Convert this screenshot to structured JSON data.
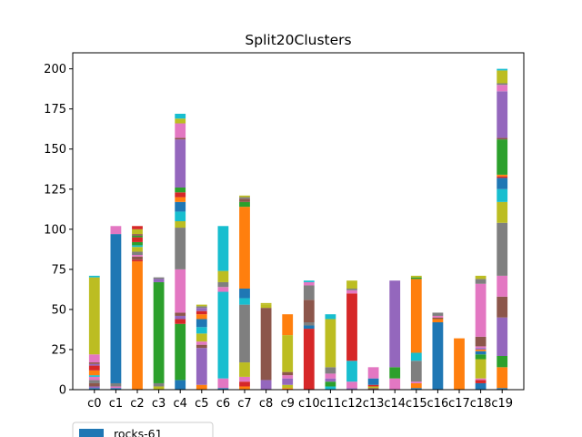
{
  "chart_data": {
    "type": "bar",
    "stacked": true,
    "title": "Split20Clusters",
    "xlabel": "",
    "ylabel": "",
    "ylim": [
      0,
      210
    ],
    "yticks": [
      0,
      25,
      50,
      75,
      100,
      125,
      150,
      175,
      200
    ],
    "grid": false,
    "legend_placement": "bottom-left (partially visible)",
    "categories": [
      "c0",
      "c1",
      "c2",
      "c3",
      "c4",
      "c5",
      "c6",
      "c7",
      "c8",
      "c9",
      "c10",
      "c11",
      "c12",
      "c13",
      "c14",
      "c15",
      "c16",
      "c17",
      "c18",
      "c19"
    ],
    "segment_colors": [
      "#1f77b4",
      "#ff7f0e",
      "#2ca02c",
      "#d62728",
      "#9467bd",
      "#8c564b",
      "#e377c2",
      "#7f7f7f",
      "#bcbd22",
      "#17becf"
    ],
    "stacks": [
      [
        [
          1,
          "#1f77b4"
        ],
        [
          1,
          "#9467bd"
        ],
        [
          2,
          "#8c564b"
        ],
        [
          2,
          "#7f7f7f"
        ],
        [
          2,
          "#e377c2"
        ],
        [
          1,
          "#17becf"
        ],
        [
          3,
          "#ff7f0e"
        ],
        [
          3,
          "#d62728"
        ],
        [
          1,
          "#9467bd"
        ],
        [
          1,
          "#8c564b"
        ],
        [
          5,
          "#e377c2"
        ],
        [
          48,
          "#bcbd22"
        ],
        [
          1,
          "#17becf"
        ]
      ],
      [
        [
          1,
          "#1f77b4"
        ],
        [
          1,
          "#e377c2"
        ],
        [
          2,
          "#7f7f7f"
        ],
        [
          93,
          "#1f77b4"
        ],
        [
          5,
          "#e377c2"
        ]
      ],
      [
        [
          80,
          "#ff7f0e"
        ],
        [
          1,
          "#d62728"
        ],
        [
          2,
          "#8c564b"
        ],
        [
          1,
          "#e377c2"
        ],
        [
          2,
          "#7f7f7f"
        ],
        [
          3,
          "#bcbd22"
        ],
        [
          1,
          "#17becf"
        ],
        [
          2,
          "#2ca02c"
        ],
        [
          3,
          "#d62728"
        ],
        [
          1,
          "#2ca02c"
        ],
        [
          1,
          "#8c564b"
        ],
        [
          3,
          "#bcbd22"
        ],
        [
          2,
          "#d62728"
        ]
      ],
      [
        [
          2,
          "#bcbd22"
        ],
        [
          2,
          "#7f7f7f"
        ],
        [
          63,
          "#2ca02c"
        ],
        [
          2,
          "#9467bd"
        ],
        [
          1,
          "#7f7f7f"
        ]
      ],
      [
        [
          6,
          "#1f77b4"
        ],
        [
          35,
          "#2ca02c"
        ],
        [
          3,
          "#d62728"
        ],
        [
          2,
          "#9467bd"
        ],
        [
          2,
          "#8c564b"
        ],
        [
          27,
          "#e377c2"
        ],
        [
          26,
          "#7f7f7f"
        ],
        [
          4,
          "#bcbd22"
        ],
        [
          6,
          "#17becf"
        ],
        [
          6,
          "#1f77b4"
        ],
        [
          3,
          "#ff7f0e"
        ],
        [
          3,
          "#d62728"
        ],
        [
          3,
          "#2ca02c"
        ],
        [
          30,
          "#9467bd"
        ],
        [
          1,
          "#8c564b"
        ],
        [
          9,
          "#e377c2"
        ],
        [
          3,
          "#bcbd22"
        ],
        [
          3,
          "#17becf"
        ]
      ],
      [
        [
          3,
          "#ff7f0e"
        ],
        [
          23,
          "#9467bd"
        ],
        [
          2,
          "#8c564b"
        ],
        [
          2,
          "#e377c2"
        ],
        [
          5,
          "#bcbd22"
        ],
        [
          4,
          "#17becf"
        ],
        [
          5,
          "#1f77b4"
        ],
        [
          3,
          "#ff7f0e"
        ],
        [
          2,
          "#d62728"
        ],
        [
          2,
          "#9467bd"
        ],
        [
          1,
          "#7f7f7f"
        ],
        [
          1,
          "#bcbd22"
        ]
      ],
      [
        [
          1,
          "#1f77b4"
        ],
        [
          6,
          "#e377c2"
        ],
        [
          54,
          "#17becf"
        ],
        [
          3,
          "#e377c2"
        ],
        [
          3,
          "#7f7f7f"
        ],
        [
          7,
          "#bcbd22"
        ],
        [
          28,
          "#17becf"
        ]
      ],
      [
        [
          2,
          "#ff7f0e"
        ],
        [
          3,
          "#d62728"
        ],
        [
          3,
          "#e377c2"
        ],
        [
          9,
          "#bcbd22"
        ],
        [
          36,
          "#7f7f7f"
        ],
        [
          4,
          "#17becf"
        ],
        [
          6,
          "#1f77b4"
        ],
        [
          51,
          "#ff7f0e"
        ],
        [
          3,
          "#2ca02c"
        ],
        [
          2,
          "#8c564b"
        ],
        [
          1,
          "#7f7f7f"
        ],
        [
          1,
          "#bcbd22"
        ]
      ],
      [
        [
          6,
          "#9467bd"
        ],
        [
          45,
          "#8c564b"
        ],
        [
          2,
          "#bcbd22"
        ],
        [
          1,
          "#bcbd22"
        ]
      ],
      [
        [
          1,
          "#ff7f0e"
        ],
        [
          2,
          "#bcbd22"
        ],
        [
          4,
          "#9467bd"
        ],
        [
          2,
          "#e377c2"
        ],
        [
          2,
          "#8c564b"
        ],
        [
          23,
          "#bcbd22"
        ],
        [
          13,
          "#ff7f0e"
        ]
      ],
      [
        [
          38,
          "#d62728"
        ],
        [
          2,
          "#1f77b4"
        ],
        [
          2,
          "#7f7f7f"
        ],
        [
          14,
          "#8c564b"
        ],
        [
          9,
          "#7f7f7f"
        ],
        [
          2,
          "#e377c2"
        ],
        [
          1,
          "#17becf"
        ]
      ],
      [
        [
          2,
          "#17becf"
        ],
        [
          3,
          "#2ca02c"
        ],
        [
          2,
          "#9467bd"
        ],
        [
          3,
          "#e377c2"
        ],
        [
          4,
          "#7f7f7f"
        ],
        [
          30,
          "#bcbd22"
        ],
        [
          3,
          "#17becf"
        ]
      ],
      [
        [
          1,
          "#9467bd"
        ],
        [
          4,
          "#e377c2"
        ],
        [
          13,
          "#17becf"
        ],
        [
          42,
          "#d62728"
        ],
        [
          2,
          "#e377c2"
        ],
        [
          1,
          "#7f7f7f"
        ],
        [
          5,
          "#bcbd22"
        ]
      ],
      [
        [
          1,
          "#8c564b"
        ],
        [
          1,
          "#bcbd22"
        ],
        [
          1,
          "#d62728"
        ],
        [
          4,
          "#1f77b4"
        ],
        [
          7,
          "#e377c2"
        ]
      ],
      [
        [
          7,
          "#e377c2"
        ],
        [
          7,
          "#2ca02c"
        ],
        [
          54,
          "#9467bd"
        ]
      ],
      [
        [
          1,
          "#1f77b4"
        ],
        [
          3,
          "#ff7f0e"
        ],
        [
          1,
          "#e377c2"
        ],
        [
          13,
          "#7f7f7f"
        ],
        [
          5,
          "#17becf"
        ],
        [
          46,
          "#ff7f0e"
        ],
        [
          1,
          "#2ca02c"
        ],
        [
          1,
          "#bcbd22"
        ]
      ],
      [
        [
          42,
          "#1f77b4"
        ],
        [
          2,
          "#ff7f0e"
        ],
        [
          1,
          "#8c564b"
        ],
        [
          1,
          "#e377c2"
        ],
        [
          2,
          "#7f7f7f"
        ]
      ],
      [
        [
          32,
          "#ff7f0e"
        ]
      ],
      [
        [
          4,
          "#1f77b4"
        ],
        [
          2,
          "#d62728"
        ],
        [
          1,
          "#e377c2"
        ],
        [
          12,
          "#bcbd22"
        ],
        [
          3,
          "#2ca02c"
        ],
        [
          2,
          "#1f77b4"
        ],
        [
          1,
          "#ff7f0e"
        ],
        [
          1,
          "#9467bd"
        ],
        [
          1,
          "#e377c2"
        ],
        [
          6,
          "#8c564b"
        ],
        [
          33,
          "#e377c2"
        ],
        [
          3,
          "#7f7f7f"
        ],
        [
          2,
          "#bcbd22"
        ]
      ],
      [
        [
          1,
          "#1f77b4"
        ],
        [
          13,
          "#ff7f0e"
        ],
        [
          7,
          "#2ca02c"
        ],
        [
          24,
          "#9467bd"
        ],
        [
          13,
          "#8c564b"
        ],
        [
          13,
          "#e377c2"
        ],
        [
          33,
          "#7f7f7f"
        ],
        [
          13,
          "#bcbd22"
        ],
        [
          8,
          "#17becf"
        ],
        [
          7,
          "#1f77b4"
        ],
        [
          1,
          "#d62728"
        ],
        [
          1,
          "#ff7f0e"
        ],
        [
          22,
          "#2ca02c"
        ],
        [
          1,
          "#8c564b"
        ],
        [
          29,
          "#9467bd"
        ],
        [
          4,
          "#e377c2"
        ],
        [
          1,
          "#7f7f7f"
        ],
        [
          8,
          "#bcbd22"
        ],
        [
          1,
          "#17becf"
        ]
      ]
    ],
    "legend": [
      {
        "label": "rocks-61",
        "color": "#1f77b4"
      }
    ]
  }
}
